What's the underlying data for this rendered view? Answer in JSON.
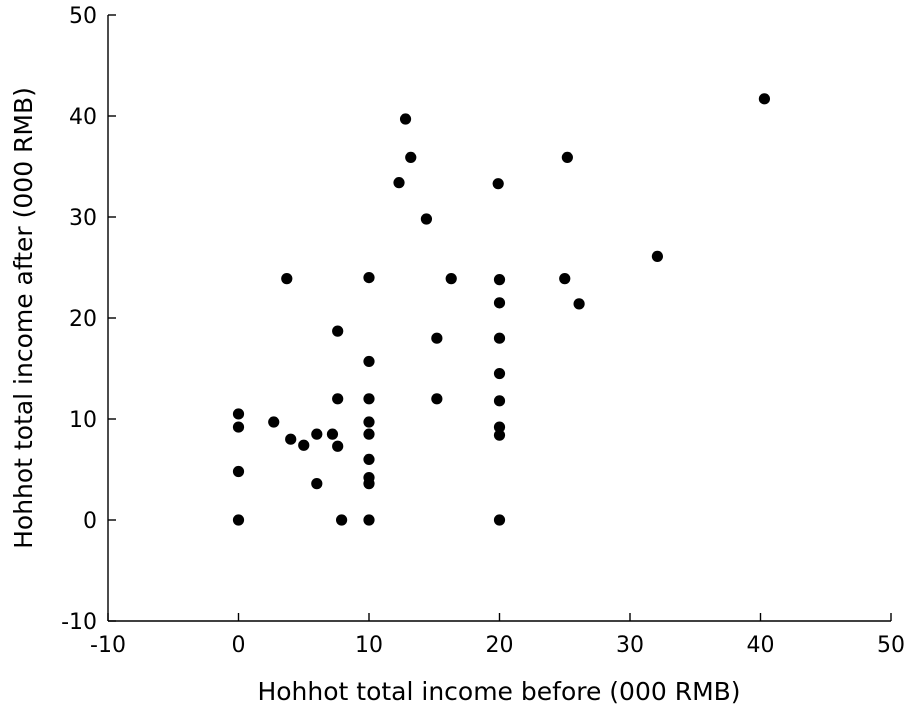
{
  "chart_data": {
    "type": "scatter",
    "title": "",
    "xlabel": "Hohhot total income before (000 RMB)",
    "ylabel": "Hohhot total income after (000 RMB)",
    "xlim": [
      -10,
      50
    ],
    "ylim": [
      -10,
      50
    ],
    "xticks": [
      -10,
      0,
      10,
      20,
      30,
      40,
      50
    ],
    "yticks": [
      -10,
      0,
      10,
      20,
      30,
      40,
      50
    ],
    "grid": false,
    "legend": "none",
    "point_color": "#000000",
    "series": [
      {
        "points": [
          [
            0,
            10.5
          ],
          [
            0,
            9.2
          ],
          [
            0,
            4.8
          ],
          [
            0,
            0
          ],
          [
            2.7,
            9.7
          ],
          [
            3.7,
            23.9
          ],
          [
            4,
            8
          ],
          [
            5,
            7.4
          ],
          [
            6,
            8.5
          ],
          [
            6,
            3.6
          ],
          [
            7.2,
            8.5
          ],
          [
            7.6,
            18.7
          ],
          [
            7.6,
            12
          ],
          [
            7.6,
            7.3
          ],
          [
            7.9,
            0
          ],
          [
            10,
            24
          ],
          [
            10,
            15.7
          ],
          [
            10,
            12
          ],
          [
            10,
            9.7
          ],
          [
            10,
            8.5
          ],
          [
            10,
            6
          ],
          [
            10,
            4.2
          ],
          [
            10,
            3.6
          ],
          [
            10,
            0
          ],
          [
            12.3,
            33.4
          ],
          [
            12.8,
            39.7
          ],
          [
            13.2,
            35.9
          ],
          [
            14.4,
            29.8
          ],
          [
            15.2,
            18
          ],
          [
            15.2,
            12
          ],
          [
            16.3,
            23.9
          ],
          [
            19.9,
            33.3
          ],
          [
            20,
            23.8
          ],
          [
            20,
            21.5
          ],
          [
            20,
            18
          ],
          [
            20,
            14.5
          ],
          [
            20,
            11.8
          ],
          [
            20,
            9.2
          ],
          [
            20,
            8.4
          ],
          [
            20,
            0
          ],
          [
            25,
            23.9
          ],
          [
            25.2,
            35.9
          ],
          [
            26.1,
            21.4
          ],
          [
            32.1,
            26.1
          ],
          [
            40.3,
            41.7
          ]
        ]
      }
    ]
  }
}
